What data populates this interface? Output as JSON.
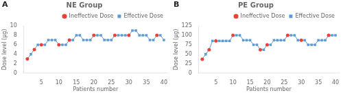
{
  "chart_data": [
    {
      "type": "line",
      "title": "NE Group",
      "annotations": [
        "A"
      ],
      "x_label": "Patients number",
      "y_label": "Dose level (µg)",
      "x": [
        1,
        2,
        3,
        4,
        5,
        6,
        7,
        8,
        9,
        10,
        11,
        12,
        13,
        14,
        15,
        16,
        17,
        18,
        19,
        20,
        21,
        22,
        23,
        24,
        25,
        26,
        27,
        28,
        29,
        30,
        31,
        32,
        33,
        34,
        35,
        36,
        37,
        38,
        39,
        40
      ],
      "series": [
        {
          "name": "Ineffective Dose",
          "type": "scatter",
          "marker": "circle",
          "color": "#e8403a",
          "values": [
            3,
            null,
            5,
            null,
            6,
            null,
            null,
            null,
            null,
            6,
            null,
            null,
            7,
            null,
            null,
            null,
            null,
            null,
            null,
            8,
            null,
            null,
            null,
            null,
            null,
            8,
            null,
            null,
            null,
            8,
            null,
            null,
            null,
            null,
            null,
            null,
            null,
            8,
            null,
            null
          ]
        },
        {
          "name": "Effective Dose",
          "type": "scatter",
          "marker": "square",
          "color": "#5b9bd5",
          "values": [
            null,
            4,
            null,
            6,
            null,
            6,
            7,
            7,
            7,
            null,
            6,
            6,
            null,
            7,
            8,
            8,
            7,
            7,
            7,
            null,
            8,
            8,
            7,
            7,
            7,
            null,
            8,
            8,
            8,
            null,
            9,
            9,
            8,
            8,
            8,
            7,
            7,
            null,
            8,
            7
          ]
        },
        {
          "type": "line",
          "line_style": "solid",
          "color": "#5b9bd5",
          "values": [
            3,
            4,
            5,
            6,
            6,
            6,
            7,
            7,
            7,
            6,
            6,
            6,
            7,
            7,
            8,
            8,
            7,
            7,
            7,
            8,
            8,
            8,
            7,
            7,
            7,
            8,
            8,
            8,
            8,
            8,
            9,
            9,
            8,
            8,
            8,
            7,
            7,
            8,
            8,
            7
          ]
        }
      ],
      "xlim": [
        0,
        41
      ],
      "xticks": [
        5,
        10,
        15,
        20,
        25,
        30,
        35,
        40
      ],
      "ylim": [
        0,
        10
      ],
      "yticks": [
        0,
        2,
        4,
        6,
        8,
        10
      ],
      "grid": false,
      "legend": "upper right"
    },
    {
      "type": "line",
      "title": "PE Group",
      "annotations": [
        "B"
      ],
      "x_label": "Patients number",
      "y_label": "Dose level (µg)",
      "x": [
        1,
        2,
        3,
        4,
        5,
        6,
        7,
        8,
        9,
        10,
        11,
        12,
        13,
        14,
        15,
        16,
        17,
        18,
        19,
        20,
        21,
        22,
        23,
        24,
        25,
        26,
        27,
        28,
        29,
        30,
        31,
        32,
        33,
        34,
        35,
        36,
        37,
        38,
        39,
        40
      ],
      "series": [
        {
          "name": "Ineffective Dose",
          "type": "scatter",
          "marker": "circle",
          "color": "#e8403a",
          "values": [
            37,
            null,
            62,
            null,
            85,
            null,
            null,
            null,
            null,
            100,
            null,
            null,
            null,
            null,
            null,
            null,
            null,
            62,
            null,
            75,
            null,
            null,
            null,
            null,
            null,
            100,
            null,
            null,
            null,
            87,
            null,
            null,
            null,
            null,
            null,
            null,
            null,
            100,
            null,
            null
          ]
        },
        {
          "name": "Effective Dose",
          "type": "scatter",
          "marker": "square",
          "color": "#5b9bd5",
          "values": [
            null,
            50,
            null,
            85,
            null,
            85,
            85,
            85,
            85,
            null,
            100,
            100,
            87,
            87,
            87,
            75,
            75,
            null,
            62,
            null,
            75,
            87,
            87,
            87,
            87,
            null,
            100,
            100,
            87,
            null,
            87,
            75,
            75,
            75,
            87,
            87,
            87,
            null,
            100,
            100
          ]
        },
        {
          "type": "line",
          "line_style": "solid",
          "color": "#5b9bd5",
          "values": [
            37,
            50,
            62,
            85,
            85,
            85,
            85,
            85,
            85,
            100,
            100,
            100,
            87,
            87,
            87,
            75,
            75,
            62,
            62,
            75,
            75,
            87,
            87,
            87,
            87,
            100,
            100,
            100,
            87,
            87,
            87,
            75,
            75,
            75,
            87,
            87,
            87,
            100,
            100,
            100
          ]
        }
      ],
      "xlim": [
        0,
        41
      ],
      "xticks": [
        5,
        10,
        15,
        20,
        25,
        30,
        35,
        40
      ],
      "ylim": [
        0,
        125
      ],
      "yticks": [
        0,
        25,
        50,
        75,
        100,
        125
      ],
      "grid": false,
      "legend": "upper right"
    }
  ]
}
